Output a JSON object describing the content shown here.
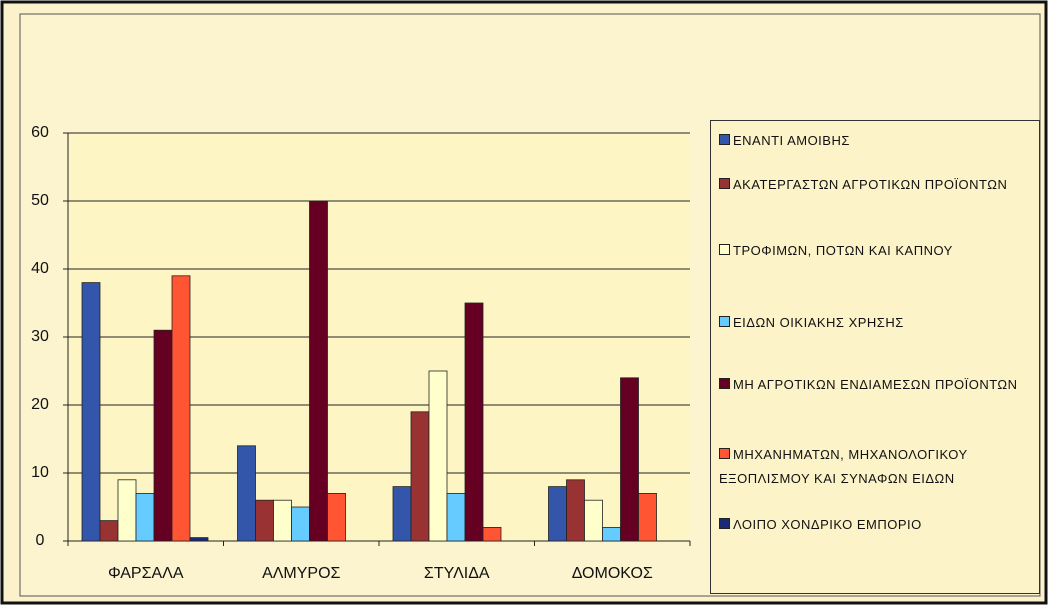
{
  "chart_data": {
    "type": "bar",
    "categories": [
      "ΦΑΡΣΑΛΑ",
      "ΑΛΜΥΡΟΣ",
      "ΣΤΥΛΙΔΑ",
      "ΔΟΜΟΚΟΣ"
    ],
    "series": [
      {
        "name": "ΕΝΑΝΤΙ ΑΜΟΙΒΗΣ",
        "color": "#3355aa",
        "values": [
          38,
          14,
          8,
          8
        ]
      },
      {
        "name": "ΑΚΑΤΕΡΓΑΣΤΩΝ ΑΓΡΟΤΙΚΩΝ ΠΡΟΪΟΝΤΩΝ",
        "color": "#993333",
        "values": [
          3,
          6,
          19,
          9
        ]
      },
      {
        "name": "ΤΡΟΦΙΜΩΝ, ΠΟΤΩΝ ΚΑΙ ΚΑΠΝΟΥ",
        "color": "#ffffcc",
        "values": [
          9,
          6,
          25,
          6
        ]
      },
      {
        "name": "ΕΙΔΩΝ ΟΙΚΙΑΚΗΣ ΧΡΗΣΗΣ",
        "color": "#66ccff",
        "values": [
          7,
          5,
          7,
          2
        ]
      },
      {
        "name": "ΜΗ ΑΓΡΟΤΙΚΩΝ ΕΝΔΙΑΜΕΣΩΝ ΠΡΟΪΟΝΤΩΝ",
        "color": "#660022",
        "values": [
          31,
          50,
          35,
          24
        ]
      },
      {
        "name": "ΜΗΧΑΝΗΜΑΤΩΝ, ΜΗΧΑΝΟΛΟΓΙΚΟΥ ΕΞΟΠΛΙΣΜΟΥ ΚΑΙ ΣΥΝΑΦΩΝ ΕΙΔΩΝ",
        "color": "#ff5533",
        "values": [
          39,
          7,
          2,
          7
        ]
      },
      {
        "name": "ΛΟΙΠΟ ΧΟΝΔΡΙΚΟ ΕΜΠΟΡΙΟ",
        "color": "#1a2a77",
        "values": [
          0.5,
          0,
          0,
          0
        ]
      }
    ],
    "ylim": [
      0,
      60
    ],
    "yticks": [
      0,
      10,
      20,
      30,
      40,
      50,
      60
    ],
    "grid": true,
    "legend": "right"
  }
}
